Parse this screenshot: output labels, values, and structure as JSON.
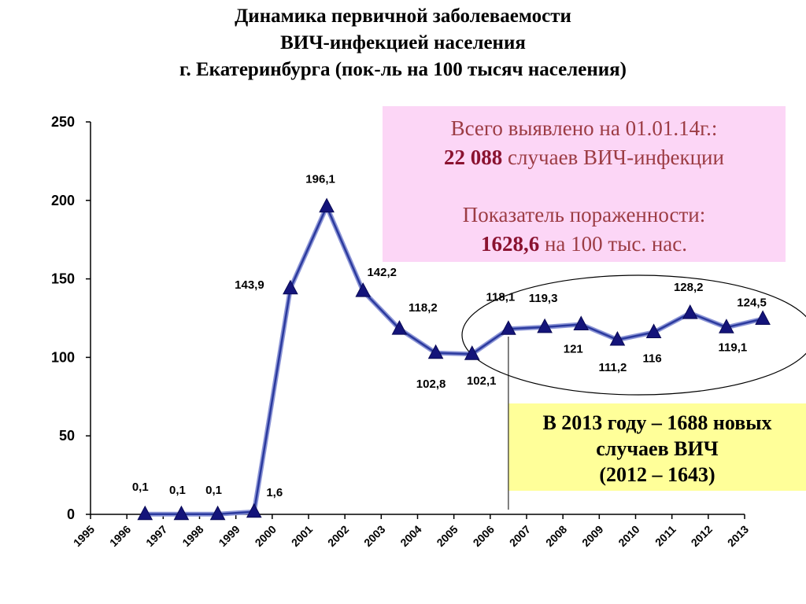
{
  "title_lines": [
    "Динамика первичной заболеваемости",
    "ВИЧ-инфекцией населения",
    "г. Екатеринбурга (пок-ль на 100 тысяч населения)"
  ],
  "info_box": {
    "line1": "Всего выявлено на 01.01.14г.:",
    "cases_number": "22 088",
    "cases_text": "случаев ВИЧ-инфекции",
    "line3": "Показатель пораженности:",
    "prevalence_number": "1628,6",
    "prevalence_text": "на 100 тыс. нас."
  },
  "note_box": {
    "line1": "В 2013 году – 1688 новых",
    "line2": "случаев ВИЧ",
    "line3": "(2012 – 1643)"
  },
  "chart_data": {
    "type": "line",
    "title": "",
    "xlabel": "",
    "ylabel": "",
    "ylim": [
      0,
      250
    ],
    "yticks": [
      "0",
      "50",
      "100",
      "150",
      "200",
      "250"
    ],
    "categories": [
      "1995",
      "1996",
      "1997",
      "1998",
      "1999",
      "2000",
      "2001",
      "2002",
      "2003",
      "2004",
      "2005",
      "2006",
      "2007",
      "2008",
      "2009",
      "2010",
      "2011",
      "2012",
      "2013"
    ],
    "series": [
      {
        "x": [
          "1996",
          "1997",
          "1998",
          "1999",
          "2000",
          "2001",
          "2002",
          "2003",
          "2004",
          "2005",
          "2006",
          "2007",
          "2008",
          "2009",
          "2010",
          "2011",
          "2012",
          "2013"
        ],
        "values": [
          0.1,
          0.1,
          0.1,
          1.6,
          143.9,
          196.1,
          142.2,
          118.2,
          102.8,
          102.1,
          118.1,
          119.3,
          121,
          111.2,
          116,
          128.2,
          119.1,
          124.5
        ],
        "labels": [
          "0,1",
          "0,1",
          "0,1",
          "1,6",
          "143,9",
          "196,1",
          "142,2",
          "118,2",
          "102,8",
          "102,1",
          "118,1",
          "119,3",
          "121",
          "111,2",
          "116",
          "128,2",
          "119,1",
          "124,5"
        ],
        "color": "#2b3a9e",
        "marker_color": "#14147a"
      }
    ],
    "grid": false,
    "legend": "none",
    "annotations": [
      "ellipse around 2006–2013",
      "vertical line at 2006"
    ]
  }
}
